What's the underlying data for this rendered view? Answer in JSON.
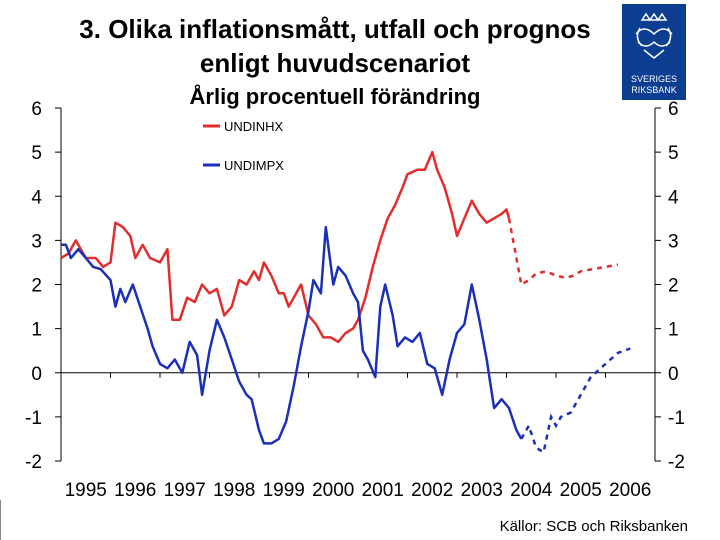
{
  "title_line1": "3. Olika inflationsmått, utfall och prognos",
  "title_line2": "enligt huvudscenariot",
  "subtitle": "Årlig procentuell förändring",
  "source": "Källor: SCB och Riksbanken",
  "logo_text": [
    "SVERIGES",
    "RIKSBANK"
  ],
  "colors": {
    "undinhx": "#e32d2d",
    "undimpx": "#1b2fb8",
    "logo_bg": "#0b3d91"
  },
  "chart_data": {
    "type": "line",
    "title": "3. Olika inflationsmått, utfall och prognos enligt huvudscenariot",
    "subtitle": "Årlig procentuell förändring",
    "xlabel": "",
    "ylabel": "",
    "xlim": [
      1995,
      2007
    ],
    "ylim": [
      -2,
      6
    ],
    "x_ticks": [
      "1995",
      "1996",
      "1997",
      "1998",
      "1999",
      "2000",
      "2001",
      "2002",
      "2003",
      "2004",
      "2005",
      "2006"
    ],
    "y_ticks": [
      6,
      5,
      4,
      3,
      2,
      1,
      0,
      -1,
      -2
    ],
    "legend_position": "top-left",
    "series": [
      {
        "name": "UNDINHX",
        "outcome": [
          [
            1995.0,
            2.6
          ],
          [
            1995.15,
            2.7
          ],
          [
            1995.3,
            3.0
          ],
          [
            1995.5,
            2.6
          ],
          [
            1995.7,
            2.6
          ],
          [
            1995.85,
            2.4
          ],
          [
            1996.0,
            2.5
          ],
          [
            1996.1,
            3.4
          ],
          [
            1996.25,
            3.3
          ],
          [
            1996.4,
            3.1
          ],
          [
            1996.5,
            2.6
          ],
          [
            1996.65,
            2.9
          ],
          [
            1996.8,
            2.6
          ],
          [
            1997.0,
            2.5
          ],
          [
            1997.15,
            2.8
          ],
          [
            1997.25,
            1.2
          ],
          [
            1997.4,
            1.2
          ],
          [
            1997.55,
            1.7
          ],
          [
            1997.7,
            1.6
          ],
          [
            1997.85,
            2.0
          ],
          [
            1998.0,
            1.8
          ],
          [
            1998.15,
            1.9
          ],
          [
            1998.3,
            1.3
          ],
          [
            1998.45,
            1.5
          ],
          [
            1998.6,
            2.1
          ],
          [
            1998.75,
            2.0
          ],
          [
            1998.9,
            2.3
          ],
          [
            1999.0,
            2.1
          ],
          [
            1999.1,
            2.5
          ],
          [
            1999.25,
            2.2
          ],
          [
            1999.4,
            1.8
          ],
          [
            1999.5,
            1.8
          ],
          [
            1999.6,
            1.5
          ],
          [
            1999.7,
            1.7
          ],
          [
            1999.85,
            2.0
          ],
          [
            2000.0,
            1.3
          ],
          [
            2000.15,
            1.1
          ],
          [
            2000.3,
            0.8
          ],
          [
            2000.45,
            0.8
          ],
          [
            2000.6,
            0.7
          ],
          [
            2000.75,
            0.9
          ],
          [
            2000.9,
            1.0
          ],
          [
            2001.0,
            1.2
          ],
          [
            2001.15,
            1.7
          ],
          [
            2001.3,
            2.4
          ],
          [
            2001.45,
            3.0
          ],
          [
            2001.6,
            3.5
          ],
          [
            2001.75,
            3.8
          ],
          [
            2001.9,
            4.2
          ],
          [
            2002.0,
            4.5
          ],
          [
            2002.2,
            4.6
          ],
          [
            2002.35,
            4.6
          ],
          [
            2002.5,
            5.0
          ],
          [
            2002.6,
            4.6
          ],
          [
            2002.75,
            4.2
          ],
          [
            2002.9,
            3.6
          ],
          [
            2003.0,
            3.1
          ],
          [
            2003.15,
            3.5
          ],
          [
            2003.3,
            3.9
          ],
          [
            2003.45,
            3.6
          ],
          [
            2003.6,
            3.4
          ],
          [
            2003.75,
            3.5
          ],
          [
            2003.9,
            3.6
          ],
          [
            2004.0,
            3.7
          ],
          [
            2004.05,
            3.5
          ]
        ],
        "forecast": [
          [
            2004.05,
            3.5
          ],
          [
            2004.2,
            2.6
          ],
          [
            2004.3,
            2.0
          ],
          [
            2004.45,
            2.1
          ],
          [
            2004.6,
            2.25
          ],
          [
            2004.8,
            2.3
          ],
          [
            2005.0,
            2.2
          ],
          [
            2005.2,
            2.15
          ],
          [
            2005.35,
            2.2
          ],
          [
            2005.5,
            2.3
          ],
          [
            2005.75,
            2.35
          ],
          [
            2006.0,
            2.4
          ],
          [
            2006.25,
            2.45
          ]
        ]
      },
      {
        "name": "UNDIMPX",
        "outcome": [
          [
            1995.0,
            2.9
          ],
          [
            1995.1,
            2.9
          ],
          [
            1995.2,
            2.6
          ],
          [
            1995.35,
            2.8
          ],
          [
            1995.5,
            2.6
          ],
          [
            1995.65,
            2.4
          ],
          [
            1995.8,
            2.35
          ],
          [
            1996.0,
            2.1
          ],
          [
            1996.1,
            1.5
          ],
          [
            1996.2,
            1.9
          ],
          [
            1996.3,
            1.6
          ],
          [
            1996.45,
            2.0
          ],
          [
            1996.6,
            1.5
          ],
          [
            1996.75,
            1.0
          ],
          [
            1996.85,
            0.6
          ],
          [
            1997.0,
            0.2
          ],
          [
            1997.15,
            0.1
          ],
          [
            1997.3,
            0.3
          ],
          [
            1997.45,
            0.0
          ],
          [
            1997.6,
            0.7
          ],
          [
            1997.75,
            0.4
          ],
          [
            1997.85,
            -0.5
          ],
          [
            1998.0,
            0.5
          ],
          [
            1998.15,
            1.2
          ],
          [
            1998.3,
            0.8
          ],
          [
            1998.45,
            0.3
          ],
          [
            1998.6,
            -0.2
          ],
          [
            1998.75,
            -0.5
          ],
          [
            1998.85,
            -0.6
          ],
          [
            1999.0,
            -1.3
          ],
          [
            1999.1,
            -1.6
          ],
          [
            1999.25,
            -1.6
          ],
          [
            1999.4,
            -1.5
          ],
          [
            1999.55,
            -1.1
          ],
          [
            1999.7,
            -0.3
          ],
          [
            1999.85,
            0.6
          ],
          [
            2000.0,
            1.4
          ],
          [
            2000.1,
            2.1
          ],
          [
            2000.25,
            1.8
          ],
          [
            2000.35,
            3.3
          ],
          [
            2000.5,
            2.0
          ],
          [
            2000.6,
            2.4
          ],
          [
            2000.75,
            2.2
          ],
          [
            2000.9,
            1.8
          ],
          [
            2001.0,
            1.6
          ],
          [
            2001.1,
            0.5
          ],
          [
            2001.2,
            0.3
          ],
          [
            2001.35,
            -0.1
          ],
          [
            2001.45,
            1.5
          ],
          [
            2001.55,
            2.0
          ],
          [
            2001.7,
            1.3
          ],
          [
            2001.8,
            0.6
          ],
          [
            2001.95,
            0.8
          ],
          [
            2002.1,
            0.7
          ],
          [
            2002.25,
            0.9
          ],
          [
            2002.4,
            0.2
          ],
          [
            2002.55,
            0.1
          ],
          [
            2002.7,
            -0.5
          ],
          [
            2002.85,
            0.3
          ],
          [
            2003.0,
            0.9
          ],
          [
            2003.15,
            1.1
          ],
          [
            2003.3,
            2.0
          ],
          [
            2003.45,
            1.2
          ],
          [
            2003.6,
            0.3
          ],
          [
            2003.75,
            -0.8
          ],
          [
            2003.9,
            -0.6
          ],
          [
            2004.05,
            -0.8
          ],
          [
            2004.2,
            -1.3
          ],
          [
            2004.3,
            -1.5
          ]
        ],
        "forecast": [
          [
            2004.3,
            -1.5
          ],
          [
            2004.45,
            -1.2
          ],
          [
            2004.6,
            -1.7
          ],
          [
            2004.75,
            -1.8
          ],
          [
            2004.9,
            -1.0
          ],
          [
            2005.0,
            -1.2
          ],
          [
            2005.1,
            -1.0
          ],
          [
            2005.3,
            -0.9
          ],
          [
            2005.5,
            -0.5
          ],
          [
            2005.7,
            -0.1
          ],
          [
            2005.9,
            0.1
          ],
          [
            2006.1,
            0.3
          ],
          [
            2006.25,
            0.45
          ],
          [
            2006.5,
            0.55
          ]
        ]
      }
    ]
  }
}
